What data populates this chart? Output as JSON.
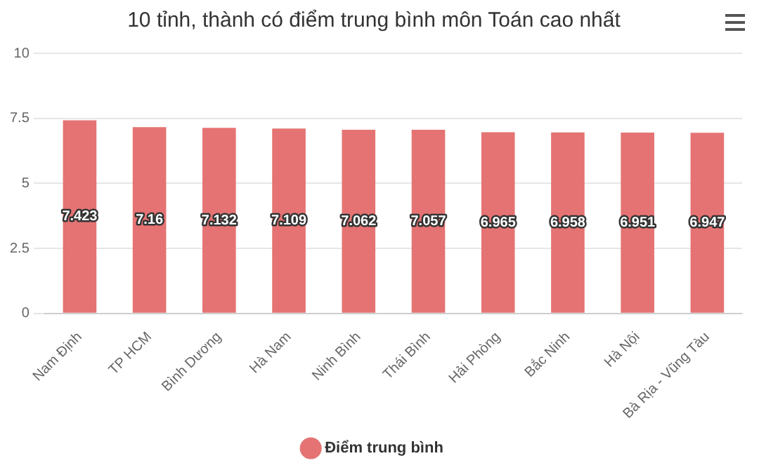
{
  "chart_data": {
    "type": "bar",
    "title": "10 tỉnh, thành có điểm trung bình môn Toán cao nhất",
    "categories": [
      "Nam Định",
      "TP HCM",
      "Bình Dương",
      "Hà Nam",
      "Ninh Bình",
      "Thái Bình",
      "Hải Phòng",
      "Bắc Ninh",
      "Hà Nội",
      "Bà Rịa - Vũng Tàu"
    ],
    "series": [
      {
        "name": "Điểm trung bình",
        "color": "#e57373",
        "values": [
          7.423,
          7.16,
          7.132,
          7.109,
          7.062,
          7.057,
          6.965,
          6.958,
          6.951,
          6.947
        ]
      }
    ],
    "ylim": [
      0,
      10
    ],
    "yticks": [
      0,
      2.5,
      5,
      7.5,
      10
    ],
    "grid": "y",
    "legend": "bottom",
    "data_labels": true
  }
}
